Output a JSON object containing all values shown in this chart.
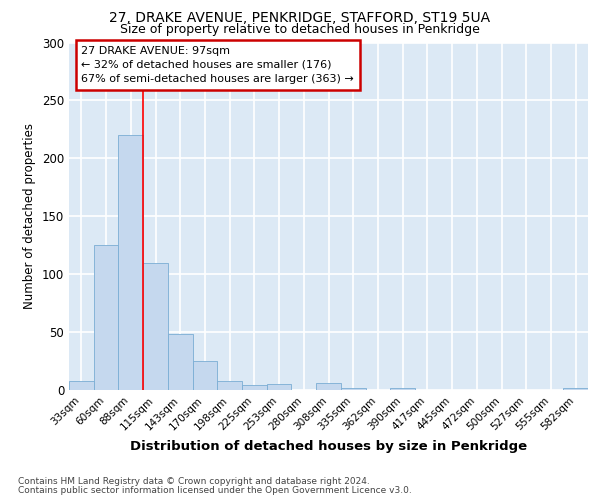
{
  "title1": "27, DRAKE AVENUE, PENKRIDGE, STAFFORD, ST19 5UA",
  "title2": "Size of property relative to detached houses in Penkridge",
  "xlabel": "Distribution of detached houses by size in Penkridge",
  "ylabel": "Number of detached properties",
  "bin_labels": [
    "33sqm",
    "60sqm",
    "88sqm",
    "115sqm",
    "143sqm",
    "170sqm",
    "198sqm",
    "225sqm",
    "253sqm",
    "280sqm",
    "308sqm",
    "335sqm",
    "362sqm",
    "390sqm",
    "417sqm",
    "445sqm",
    "472sqm",
    "500sqm",
    "527sqm",
    "555sqm",
    "582sqm"
  ],
  "bar_values": [
    8,
    125,
    220,
    110,
    48,
    25,
    8,
    4,
    5,
    0,
    6,
    2,
    0,
    2,
    0,
    0,
    0,
    0,
    0,
    0,
    2
  ],
  "bar_color": "#c5d8ee",
  "bar_edge_color": "#7aadd4",
  "bg_color": "#dce9f5",
  "grid_color": "#ffffff",
  "red_line_x": 2.5,
  "annotation_text": "27 DRAKE AVENUE: 97sqm\n← 32% of detached houses are smaller (176)\n67% of semi-detached houses are larger (363) →",
  "annotation_box_color": "#ffffff",
  "annotation_box_edge": "#cc0000",
  "footnote1": "Contains HM Land Registry data © Crown copyright and database right 2024.",
  "footnote2": "Contains public sector information licensed under the Open Government Licence v3.0.",
  "ylim": [
    0,
    300
  ],
  "yticks": [
    0,
    50,
    100,
    150,
    200,
    250,
    300
  ]
}
